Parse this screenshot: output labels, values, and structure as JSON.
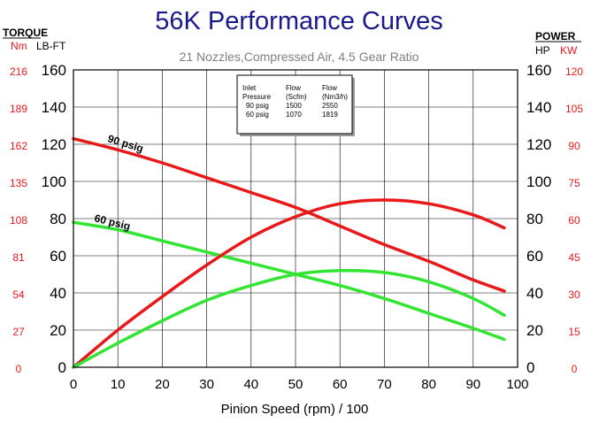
{
  "title": "56K Performance Curves",
  "subtitle": "21 Nozzles,Compressed Air, 4.5 Gear Ratio",
  "left_header": {
    "group": "TORQUE",
    "unit_nm": "Nm",
    "unit_lbft": "LB-FT"
  },
  "right_header": {
    "group": "POWER",
    "unit_hp": "HP",
    "unit_kw": "KW"
  },
  "colors": {
    "title": "#1a1a8c",
    "red": "#e8191b",
    "green": "#33e533",
    "secondary_axis": "#e8191b",
    "subtitle": "#7f7f7f"
  },
  "legend_box": {
    "headers": [
      "Inlet\nPressure",
      "Flow\n(Scfm)",
      "Flow\n(Nm3/h)"
    ],
    "rows": [
      [
        "90  psig",
        "1500",
        "2550"
      ],
      [
        "60  psig",
        "1070",
        "1819"
      ]
    ]
  },
  "chart_data": {
    "type": "line",
    "xlabel": "Pinion Speed (rpm) / 100",
    "xlim": [
      0,
      100
    ],
    "x_ticks": [
      "0",
      "10",
      "20",
      "30",
      "40",
      "50",
      "60",
      "70",
      "80",
      "90",
      "100"
    ],
    "y_left_lbft": {
      "range": [
        0,
        160
      ],
      "ticks": [
        "0",
        "20",
        "40",
        "60",
        "80",
        "100",
        "120",
        "140",
        "160"
      ]
    },
    "y_left_nm": {
      "ticks": [
        "0",
        "27",
        "54",
        "81",
        "108",
        "135",
        "162",
        "189",
        "216"
      ]
    },
    "y_right_hp": {
      "range": [
        0,
        160
      ],
      "ticks": [
        "0",
        "20",
        "40",
        "60",
        "80",
        "100",
        "120",
        "140",
        "160"
      ]
    },
    "y_right_kw": {
      "ticks": [
        "0",
        "15",
        "30",
        "45",
        "60",
        "75",
        "90",
        "105",
        "120"
      ]
    },
    "grid": true,
    "series": [
      {
        "name": "90 psig",
        "kind": "torque",
        "color": "#e8191b",
        "x": [
          0,
          10,
          20,
          30,
          40,
          50,
          60,
          70,
          80,
          90,
          97
        ],
        "y": [
          123,
          117,
          110,
          102,
          94,
          86,
          76,
          66,
          57,
          47,
          41
        ]
      },
      {
        "name": "60 psig",
        "kind": "torque",
        "color": "#33e533",
        "x": [
          0,
          10,
          20,
          30,
          40,
          50,
          60,
          70,
          80,
          90,
          97
        ],
        "y": [
          78,
          74,
          68,
          62,
          56,
          50,
          44,
          37,
          29,
          21,
          15
        ]
      },
      {
        "name": "",
        "kind": "power",
        "color": "#e8191b",
        "x": [
          0,
          10,
          20,
          30,
          40,
          50,
          60,
          70,
          80,
          90,
          97
        ],
        "y": [
          0,
          20,
          38,
          55,
          70,
          81,
          88,
          90,
          88,
          82,
          75
        ]
      },
      {
        "name": "",
        "kind": "power",
        "color": "#33e533",
        "x": [
          0,
          10,
          20,
          30,
          40,
          50,
          60,
          70,
          80,
          90,
          97
        ],
        "y": [
          0,
          13,
          25,
          36,
          44,
          50,
          52,
          51,
          46,
          37,
          28
        ]
      }
    ]
  }
}
